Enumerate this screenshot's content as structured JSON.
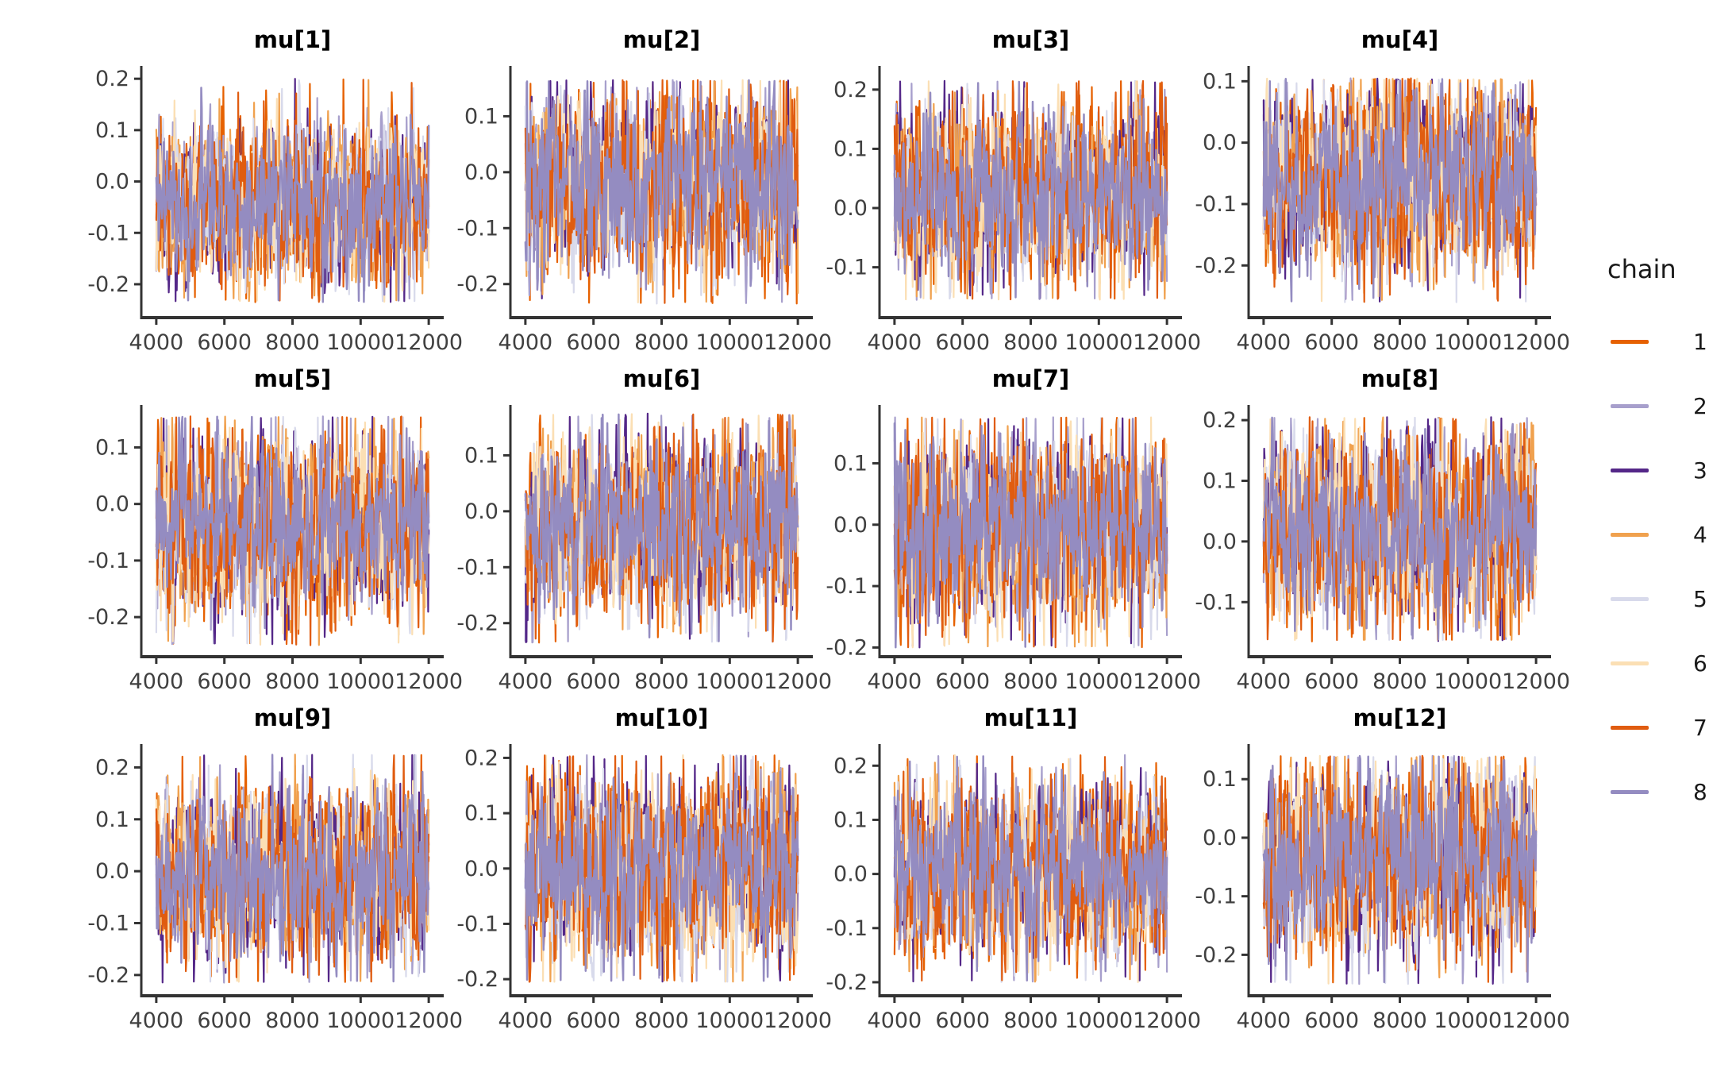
{
  "chart_data": {
    "type": "line",
    "subtype": "mcmc_trace_grid",
    "title": "",
    "xlabel": "",
    "ylabel": "",
    "grid": false,
    "x_ticks": [
      4000,
      6000,
      8000,
      10000,
      12000
    ],
    "x_range": [
      4000,
      12000
    ],
    "x_domain": [
      3560,
      12440
    ],
    "points_per_chain": 480,
    "facets": [
      {
        "label": "mu[1]",
        "y_ticks": [
          0.2,
          0.1,
          0.0,
          -0.1,
          -0.2
        ],
        "band": [
          -0.17,
          0.09
        ],
        "extremes": [
          -0.235,
          0.2
        ],
        "y_domain": [
          -0.265,
          0.225
        ]
      },
      {
        "label": "mu[2]",
        "y_ticks": [
          0.1,
          0.0,
          -0.1,
          -0.2
        ],
        "band": [
          -0.155,
          0.115
        ],
        "extremes": [
          -0.235,
          0.165
        ],
        "y_domain": [
          -0.26,
          0.19
        ]
      },
      {
        "label": "mu[3]",
        "y_ticks": [
          0.2,
          0.1,
          0.0,
          -0.1
        ],
        "band": [
          -0.095,
          0.155
        ],
        "extremes": [
          -0.155,
          0.215
        ],
        "y_domain": [
          -0.185,
          0.24
        ]
      },
      {
        "label": "mu[4]",
        "y_ticks": [
          0.1,
          0.0,
          -0.1,
          -0.2
        ],
        "band": [
          -0.185,
          0.065
        ],
        "extremes": [
          -0.26,
          0.105
        ],
        "y_domain": [
          -0.285,
          0.125
        ]
      },
      {
        "label": "mu[5]",
        "y_ticks": [
          0.1,
          0.0,
          -0.1,
          -0.2
        ],
        "band": [
          -0.17,
          0.095
        ],
        "extremes": [
          -0.25,
          0.155
        ],
        "y_domain": [
          -0.27,
          0.175
        ]
      },
      {
        "label": "mu[6]",
        "y_ticks": [
          0.1,
          0.0,
          -0.1,
          -0.2
        ],
        "band": [
          -0.16,
          0.105
        ],
        "extremes": [
          -0.235,
          0.175
        ],
        "y_domain": [
          -0.26,
          0.19
        ]
      },
      {
        "label": "mu[7]",
        "y_ticks": [
          0.1,
          0.0,
          -0.1,
          -0.2
        ],
        "band": [
          -0.135,
          0.12
        ],
        "extremes": [
          -0.2,
          0.175
        ],
        "y_domain": [
          -0.215,
          0.195
        ]
      },
      {
        "label": "mu[8]",
        "y_ticks": [
          0.2,
          0.1,
          0.0,
          -0.1
        ],
        "band": [
          -0.105,
          0.15
        ],
        "extremes": [
          -0.165,
          0.205
        ],
        "y_domain": [
          -0.19,
          0.225
        ]
      },
      {
        "label": "mu[9]",
        "y_ticks": [
          0.2,
          0.1,
          0.0,
          -0.1,
          -0.2
        ],
        "band": [
          -0.145,
          0.135
        ],
        "extremes": [
          -0.215,
          0.225
        ],
        "y_domain": [
          -0.24,
          0.245
        ]
      },
      {
        "label": "mu[10]",
        "y_ticks": [
          0.2,
          0.1,
          0.0,
          -0.1,
          -0.2
        ],
        "band": [
          -0.14,
          0.145
        ],
        "extremes": [
          -0.205,
          0.205
        ],
        "y_domain": [
          -0.23,
          0.225
        ]
      },
      {
        "label": "mu[11]",
        "y_ticks": [
          0.2,
          0.1,
          0.0,
          -0.1,
          -0.2
        ],
        "band": [
          -0.13,
          0.14
        ],
        "extremes": [
          -0.2,
          0.22
        ],
        "y_domain": [
          -0.225,
          0.24
        ]
      },
      {
        "label": "mu[12]",
        "y_ticks": [
          0.1,
          0.0,
          -0.1,
          -0.2
        ],
        "band": [
          -0.17,
          0.1
        ],
        "extremes": [
          -0.25,
          0.14
        ],
        "y_domain": [
          -0.27,
          0.16
        ]
      }
    ],
    "chains": [
      {
        "label": "1",
        "color": "#E66101"
      },
      {
        "label": "2",
        "color": "#A79FCC"
      },
      {
        "label": "3",
        "color": "#542788"
      },
      {
        "label": "4",
        "color": "#F0A14E"
      },
      {
        "label": "5",
        "color": "#D8DAEB"
      },
      {
        "label": "6",
        "color": "#FBDFB4"
      },
      {
        "label": "7",
        "color": "#E05C10"
      },
      {
        "label": "8",
        "color": "#948CC1"
      }
    ],
    "legend": {
      "title": "chain",
      "position": "right"
    }
  },
  "styles": {
    "axis_color": "#333333",
    "tick_label_color": "#404040",
    "title_color": "#000000",
    "background": "#FFFFFF"
  }
}
